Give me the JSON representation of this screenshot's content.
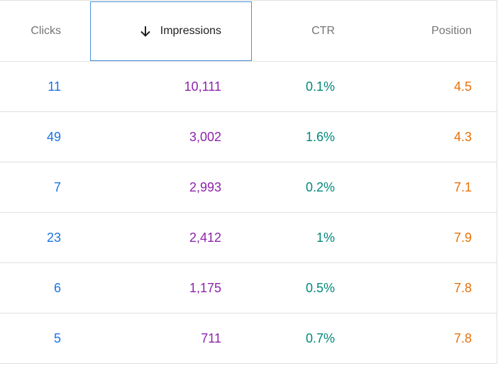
{
  "columns": {
    "clicks": "Clicks",
    "impressions": "Impressions",
    "ctr": "CTR",
    "position": "Position"
  },
  "sort": {
    "column": "impressions",
    "direction": "descending",
    "icon": "arrow-down-icon"
  },
  "colors": {
    "clicks": "#1a73e8",
    "impressions": "#8e24aa",
    "ctr": "#00897b",
    "position": "#e8710a",
    "selected_border": "#4a90d9"
  },
  "rows": [
    {
      "clicks": "11",
      "impressions": "10,111",
      "ctr": "0.1%",
      "position": "4.5"
    },
    {
      "clicks": "49",
      "impressions": "3,002",
      "ctr": "1.6%",
      "position": "4.3"
    },
    {
      "clicks": "7",
      "impressions": "2,993",
      "ctr": "0.2%",
      "position": "7.1"
    },
    {
      "clicks": "23",
      "impressions": "2,412",
      "ctr": "1%",
      "position": "7.9"
    },
    {
      "clicks": "6",
      "impressions": "1,175",
      "ctr": "0.5%",
      "position": "7.8"
    },
    {
      "clicks": "5",
      "impressions": "711",
      "ctr": "0.7%",
      "position": "7.8"
    }
  ]
}
